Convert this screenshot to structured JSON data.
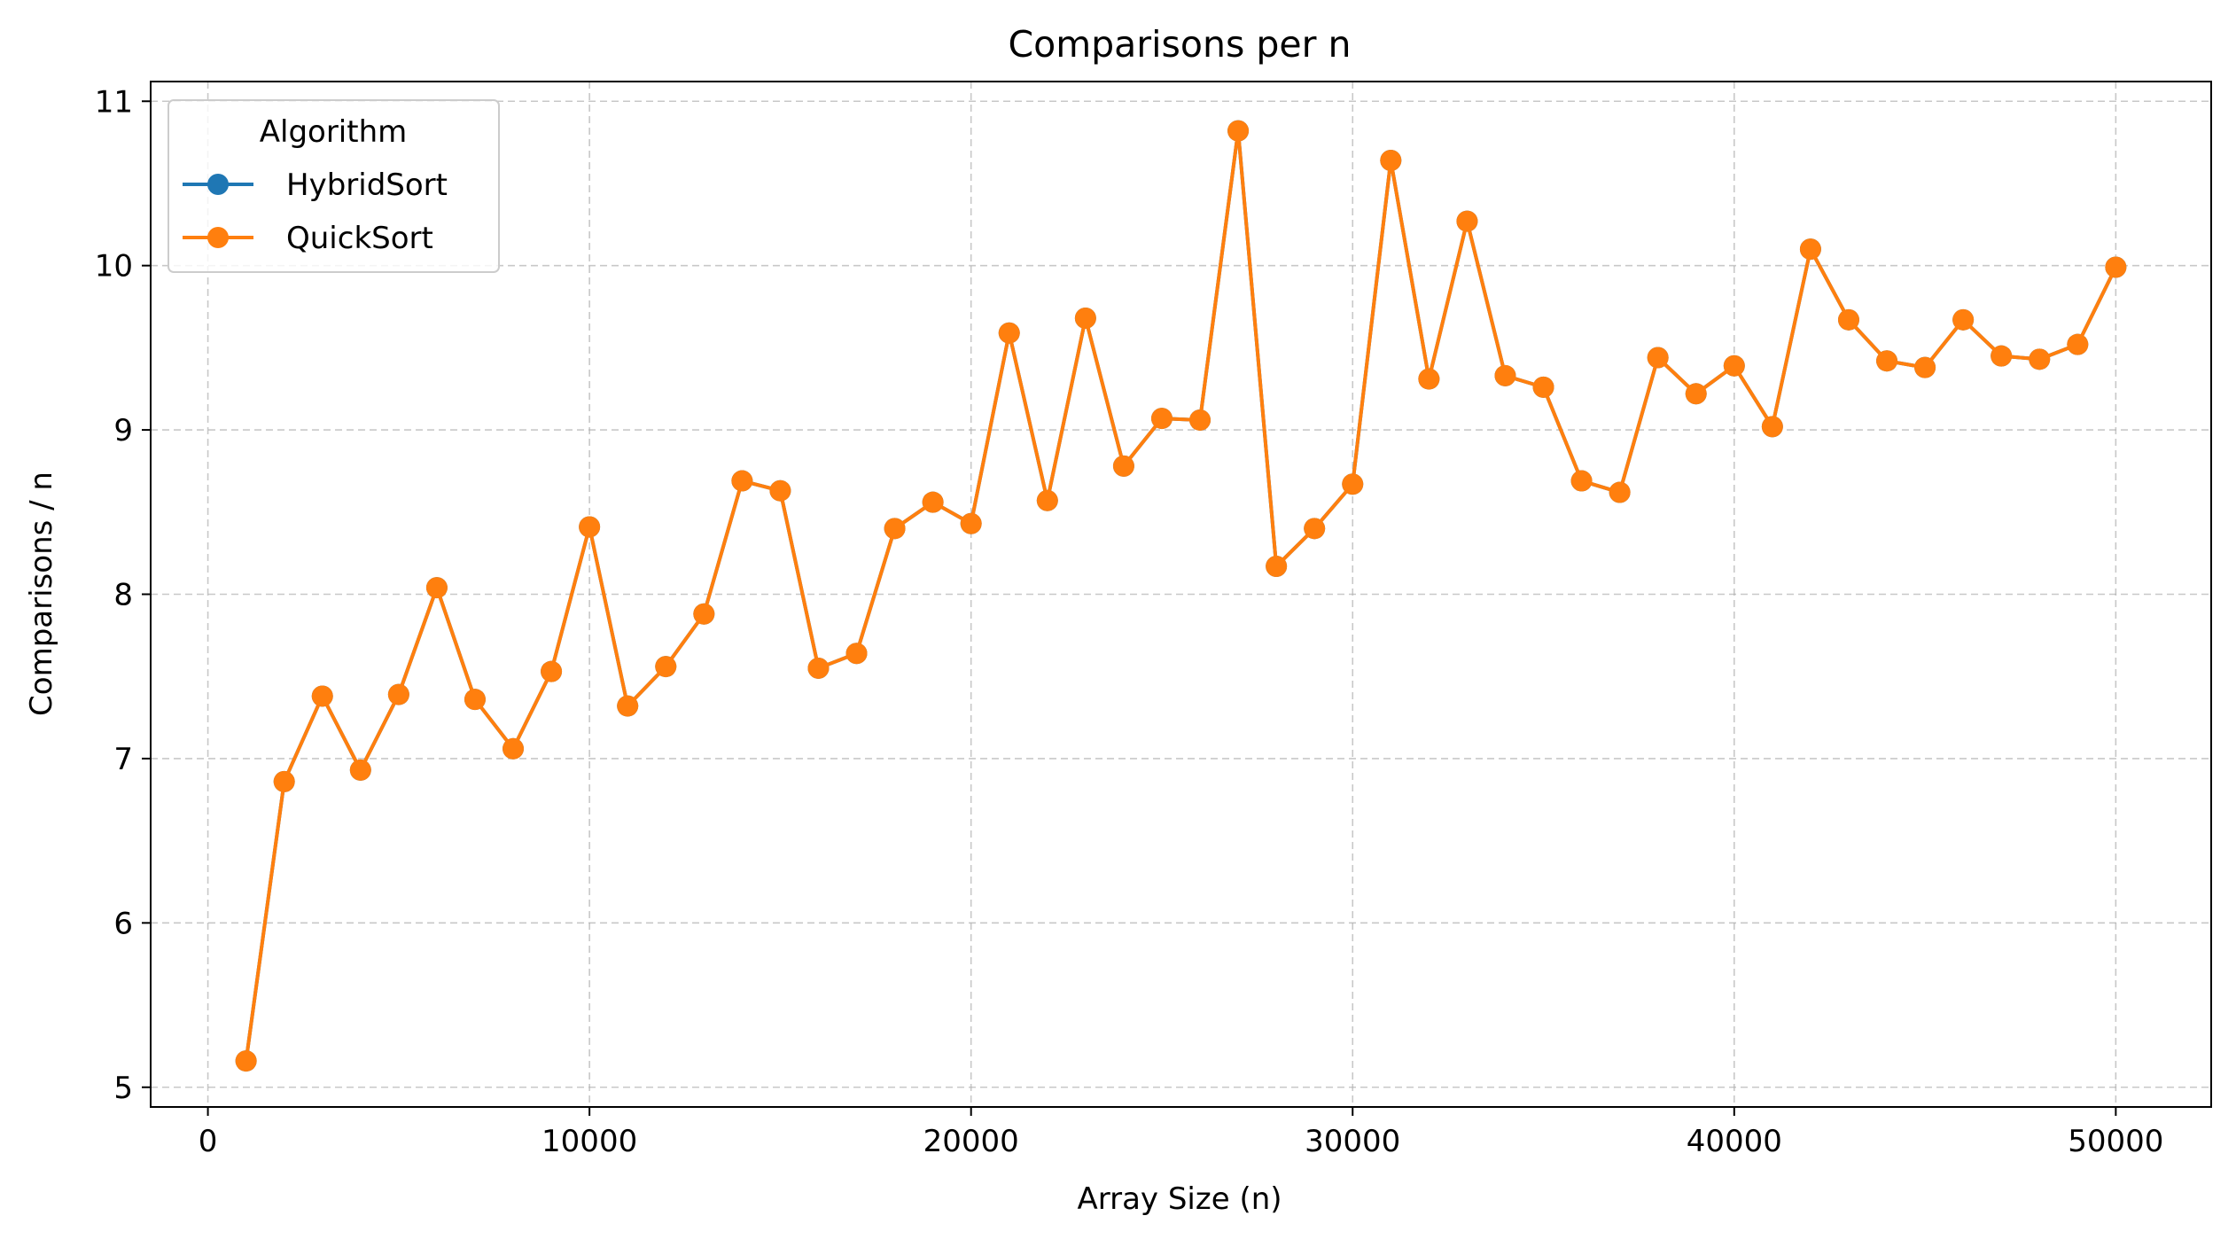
{
  "chart_data": {
    "type": "line",
    "title": "Comparisons per n",
    "xlabel": "Array Size (n)",
    "ylabel": "Comparisons / n",
    "xlim": [
      -1500,
      52500
    ],
    "ylim": [
      4.88,
      11.12
    ],
    "xticks": [
      0,
      10000,
      20000,
      30000,
      40000,
      50000
    ],
    "xtick_labels": [
      "0",
      "10000",
      "20000",
      "30000",
      "40000",
      "50000"
    ],
    "yticks": [
      5,
      6,
      7,
      8,
      9,
      10,
      11
    ],
    "ytick_labels": [
      "5",
      "6",
      "7",
      "8",
      "9",
      "10",
      "11"
    ],
    "grid": true,
    "legend": {
      "title": "Algorithm",
      "placement": "upper-left",
      "entries": [
        {
          "name": "HybridSort",
          "color": "#1f77b4"
        },
        {
          "name": "QuickSort",
          "color": "#ff7f0e"
        }
      ]
    },
    "x": [
      1000,
      2000,
      3000,
      4000,
      5000,
      6000,
      7000,
      8000,
      9000,
      10000,
      11000,
      12000,
      13000,
      14000,
      15000,
      16000,
      17000,
      18000,
      19000,
      20000,
      21000,
      22000,
      23000,
      24000,
      25000,
      26000,
      27000,
      28000,
      29000,
      30000,
      31000,
      32000,
      33000,
      34000,
      35000,
      36000,
      37000,
      38000,
      39000,
      40000,
      41000,
      42000,
      43000,
      44000,
      45000,
      46000,
      47000,
      48000,
      49000,
      50000
    ],
    "series": [
      {
        "name": "HybridSort",
        "color": "#1f77b4",
        "values": [
          5.16,
          6.86,
          7.38,
          6.93,
          7.39,
          8.04,
          7.36,
          7.06,
          7.53,
          8.41,
          7.32,
          7.56,
          7.88,
          8.69,
          8.63,
          7.55,
          7.64,
          8.4,
          8.56,
          8.43,
          9.59,
          8.57,
          9.68,
          8.78,
          9.07,
          9.06,
          10.82,
          8.17,
          8.4,
          8.67,
          10.64,
          9.31,
          10.27,
          9.33,
          9.26,
          8.69,
          8.62,
          9.44,
          9.22,
          9.39,
          9.02,
          10.1,
          9.67,
          9.42,
          9.38,
          9.67,
          9.45,
          9.43,
          9.52,
          9.99
        ]
      },
      {
        "name": "QuickSort",
        "color": "#ff7f0e",
        "values": [
          5.16,
          6.86,
          7.38,
          6.93,
          7.39,
          8.04,
          7.36,
          7.06,
          7.53,
          8.41,
          7.32,
          7.56,
          7.88,
          8.69,
          8.63,
          7.55,
          7.64,
          8.4,
          8.56,
          8.43,
          9.59,
          8.57,
          9.68,
          8.78,
          9.07,
          9.06,
          10.82,
          8.17,
          8.4,
          8.67,
          10.64,
          9.31,
          10.27,
          9.33,
          9.26,
          8.69,
          8.62,
          9.44,
          9.22,
          9.39,
          9.02,
          10.1,
          9.67,
          9.42,
          9.38,
          9.67,
          9.45,
          9.43,
          9.52,
          9.99
        ]
      }
    ]
  }
}
